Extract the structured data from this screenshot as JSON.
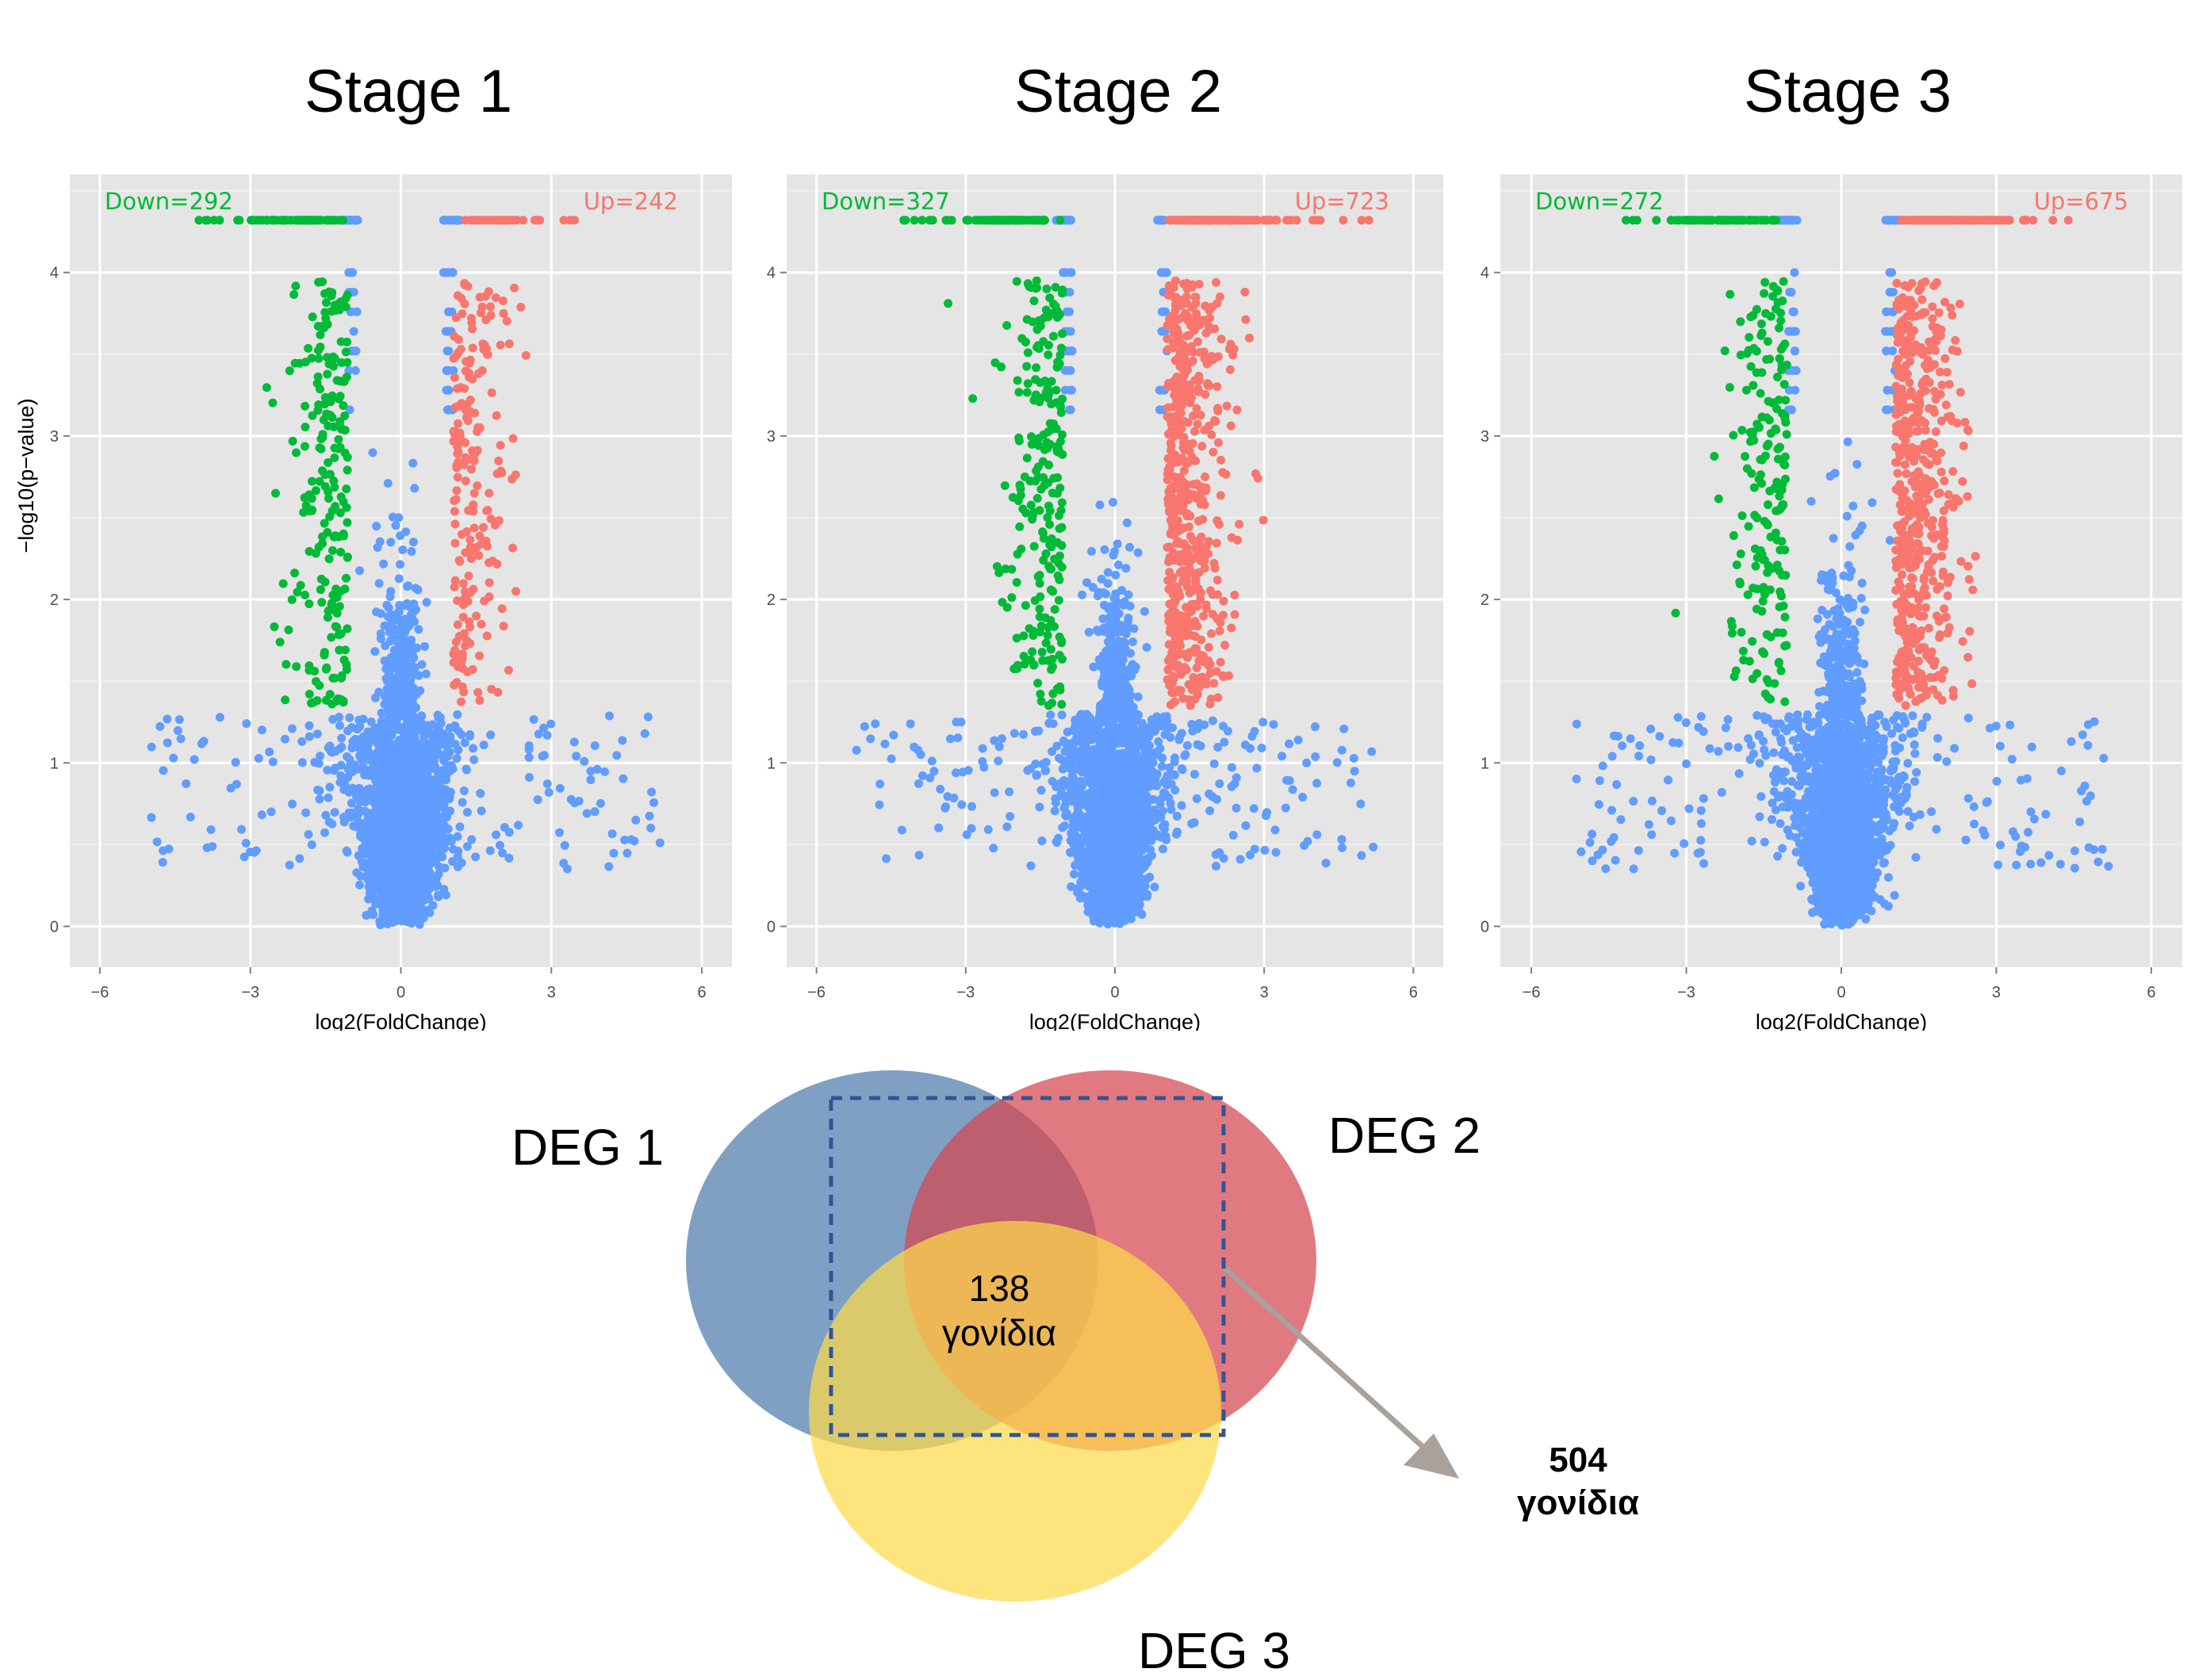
{
  "chart_data": [
    {
      "type": "scatter",
      "title": "Stage 1",
      "xlabel": "log2(FoldChange)",
      "ylabel": "−log10(p−value)",
      "xlim": [
        -6.6,
        6.6
      ],
      "ylim": [
        -0.25,
        4.6
      ],
      "xticks": [
        -6,
        -3,
        0,
        3,
        6
      ],
      "yticks": [
        0,
        1,
        2,
        3,
        4
      ],
      "grid": true,
      "annotations": {
        "down": "Down=292",
        "up": "Up=242"
      },
      "counts": {
        "down": 292,
        "up": 242
      },
      "cap": 4.32,
      "seed": 11,
      "series": [
        {
          "key": "down",
          "color": "#00ba38"
        },
        {
          "key": "up",
          "color": "#f8766d"
        },
        {
          "key": "ns",
          "color": "#619cff"
        }
      ]
    },
    {
      "type": "scatter",
      "title": "Stage 2",
      "xlabel": "log2(FoldChange)",
      "ylabel": "",
      "xlim": [
        -6.6,
        6.6
      ],
      "ylim": [
        -0.25,
        4.6
      ],
      "xticks": [
        -6,
        -3,
        0,
        3,
        6
      ],
      "yticks": [
        0,
        1,
        2,
        3,
        4
      ],
      "grid": true,
      "annotations": {
        "down": "Down=327",
        "up": "Up=723"
      },
      "counts": {
        "down": 327,
        "up": 723
      },
      "cap": 4.32,
      "seed": 23,
      "series": [
        {
          "key": "down",
          "color": "#00ba38"
        },
        {
          "key": "up",
          "color": "#f8766d"
        },
        {
          "key": "ns",
          "color": "#619cff"
        }
      ]
    },
    {
      "type": "scatter",
      "title": "Stage 3",
      "xlabel": "log2(FoldChange)",
      "ylabel": "",
      "xlim": [
        -6.6,
        6.6
      ],
      "ylim": [
        -0.25,
        4.6
      ],
      "xticks": [
        -6,
        -3,
        0,
        3,
        6
      ],
      "yticks": [
        0,
        1,
        2,
        3,
        4
      ],
      "grid": true,
      "annotations": {
        "down": "Down=272",
        "up": "Up=675"
      },
      "counts": {
        "down": 272,
        "up": 675
      },
      "cap": 4.32,
      "seed": 37,
      "series": [
        {
          "key": "down",
          "color": "#00ba38"
        },
        {
          "key": "up",
          "color": "#f8766d"
        },
        {
          "key": "ns",
          "color": "#619cff"
        }
      ]
    }
  ],
  "stages": [
    {
      "title": "Stage 1"
    },
    {
      "title": "Stage 2"
    },
    {
      "title": "Stage 3"
    }
  ],
  "venn": {
    "sets": [
      {
        "label": "DEG 1",
        "color": "#4f7cac"
      },
      {
        "label": "DEG 2",
        "color": "#d64550"
      },
      {
        "label": "DEG 3",
        "color": "#fdd94a"
      }
    ],
    "center_count": "138",
    "center_unit": "γονίδια",
    "callout_count": "504",
    "callout_unit": "γονίδια",
    "box_color": "#2f5597",
    "arrow_color": "#a8a29a"
  }
}
